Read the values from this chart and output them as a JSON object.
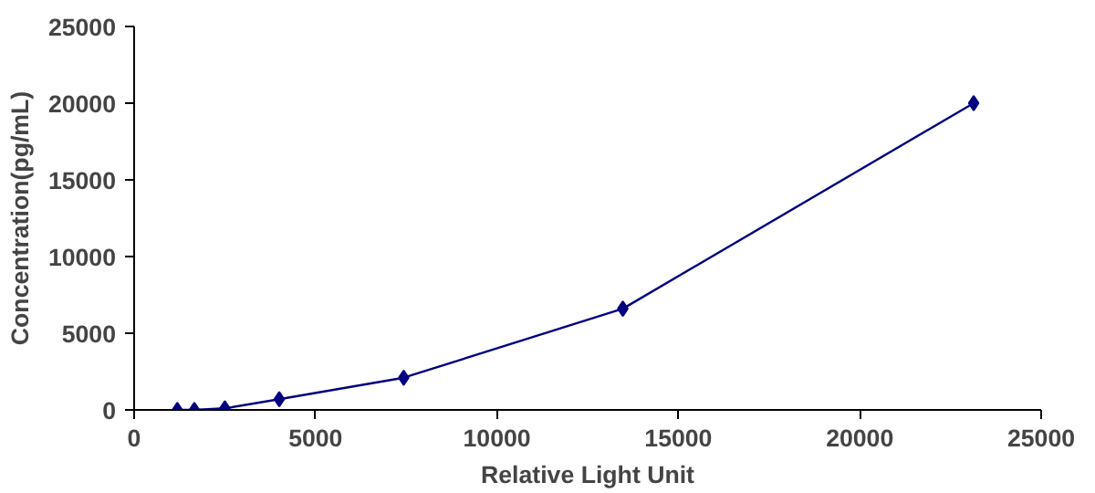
{
  "chart_data": {
    "type": "line",
    "xlabel": "Relative Light Unit",
    "ylabel": "Concentration(pg/mL)",
    "x": [
      1190,
      1660,
      2500,
      4000,
      7430,
      13470,
      23140
    ],
    "series": [
      {
        "color": "#000080",
        "values": [
          0,
          0,
          100,
          700,
          2100,
          6600,
          20000
        ]
      }
    ],
    "xlim": [
      0,
      25000
    ],
    "xticks": [
      0,
      5000,
      10000,
      15000,
      20000,
      25000
    ],
    "ylim": [
      0,
      25000
    ],
    "yticks": [
      0,
      5000,
      10000,
      15000,
      20000,
      25000
    ],
    "grid": false,
    "marker": "diamond",
    "line_style": "solid"
  }
}
